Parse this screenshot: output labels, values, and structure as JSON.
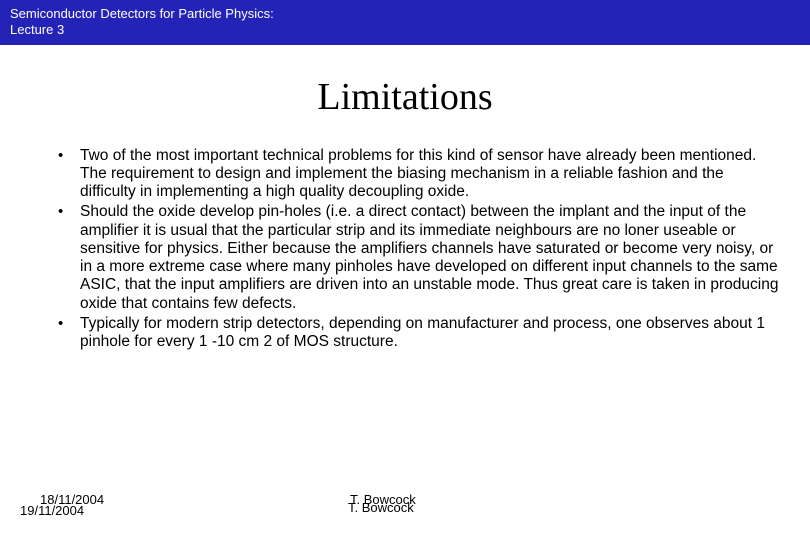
{
  "header": {
    "line1": "Semiconductor Detectors for Particle Physics:",
    "line2": "Lecture 3",
    "bg_color": "#2323b7",
    "text_color": "#ffffff"
  },
  "title": "Limitations",
  "bullets": [
    "Two of the most important technical problems for this kind of sensor have already been mentioned. The requirement to design and implement the biasing mechanism in a reliable fashion and the difficulty in implementing a high quality decoupling oxide.",
    "Should the oxide develop pin-holes (i.e. a direct contact)  between the implant and the input of the amplifier it is usual that the particular strip and its immediate neighbours are no loner useable or sensitive for physics. Either because the amplifiers channels have saturated or become very noisy, or in a more extreme case where many pinholes have developed on different input channels to the same ASIC, that the input amplifiers are driven into an unstable mode. Thus great care is taken in producing oxide that contains few defects.",
    "Typically for modern strip detectors, depending on manufacturer and process, one observes about 1 pinhole for every 1 -10 cm 2 of MOS structure."
  ],
  "footer": {
    "date1": "18/11/2004",
    "date2": "19/11/2004",
    "author1": "T. Bowcock",
    "author2": "T. Bowcock"
  },
  "colors": {
    "background": "#ffffff",
    "text": "#000000"
  }
}
